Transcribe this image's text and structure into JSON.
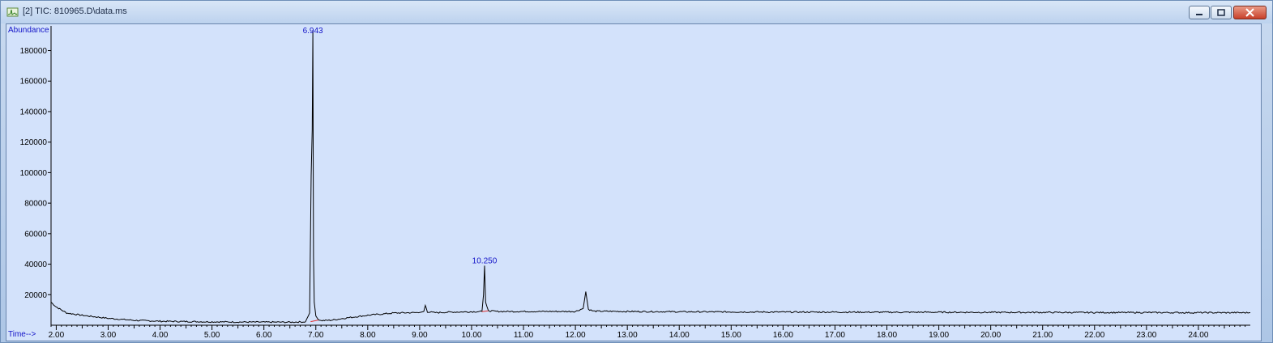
{
  "window": {
    "title": "[2] TIC: 810965.D\\data.ms",
    "icon": "chromatogram-app-icon",
    "buttons": [
      "minimize-icon",
      "maximize-icon",
      "close-icon"
    ]
  },
  "colors": {
    "plot_background": "#d3e2fb",
    "trace": "#000000",
    "axis_word": "#1515c8",
    "peak_label": "#1515c8",
    "baseline_marker": "#e03030"
  },
  "chart_data": {
    "type": "line",
    "ylabel": "Abundance",
    "xlabel": "Time-->",
    "xlim": [
      1.9,
      25.0
    ],
    "ylim": [
      0,
      193000
    ],
    "x_ticks": [
      "2.00",
      "3.00",
      "4.00",
      "5.00",
      "6.00",
      "7.00",
      "8.00",
      "9.00",
      "10.00",
      "11.00",
      "12.00",
      "13.00",
      "14.00",
      "15.00",
      "16.00",
      "17.00",
      "18.00",
      "19.00",
      "20.00",
      "21.00",
      "22.00",
      "23.00",
      "24.00"
    ],
    "y_ticks": [
      "20000",
      "40000",
      "60000",
      "80000",
      "100000",
      "120000",
      "140000",
      "160000",
      "180000"
    ],
    "grid": false,
    "series": [
      {
        "x": [
          1.9,
          2.0,
          2.2,
          2.5,
          3.0,
          3.5,
          4.0,
          5.0,
          6.0,
          6.5,
          6.8,
          6.88,
          6.91,
          6.93,
          6.943,
          6.955,
          6.97,
          7.0,
          7.05,
          7.1,
          7.3,
          7.6,
          8.0,
          8.5,
          9.0,
          9.08,
          9.11,
          9.15,
          9.3,
          9.6,
          10.0,
          10.2,
          10.23,
          10.25,
          10.27,
          10.32,
          10.5,
          11.0,
          12.0,
          12.15,
          12.2,
          12.25,
          12.35,
          13.0,
          14.0,
          15.0,
          16.0,
          17.0,
          18.0,
          19.0,
          20.0,
          21.0,
          22.0,
          23.0,
          24.0,
          25.0
        ],
        "y": [
          15000,
          12000,
          8000,
          6500,
          4500,
          3200,
          2600,
          2200,
          2000,
          2000,
          2200,
          8000,
          98000,
          128000,
          193000,
          45000,
          15000,
          6000,
          3500,
          3000,
          3300,
          4800,
          6500,
          8000,
          8300,
          9000,
          13000,
          8800,
          8200,
          8600,
          8800,
          9000,
          20000,
          39000,
          15000,
          9500,
          9000,
          9000,
          9000,
          11000,
          22000,
          10500,
          9200,
          9000,
          8800,
          8700,
          8600,
          8600,
          8500,
          8500,
          8400,
          8400,
          8300,
          8300,
          8200,
          8200
        ]
      }
    ],
    "annotations": [
      {
        "text": "6.943",
        "x": 6.943,
        "y": 193000
      },
      {
        "text": "10.250",
        "x": 10.25,
        "y": 39000
      }
    ]
  }
}
